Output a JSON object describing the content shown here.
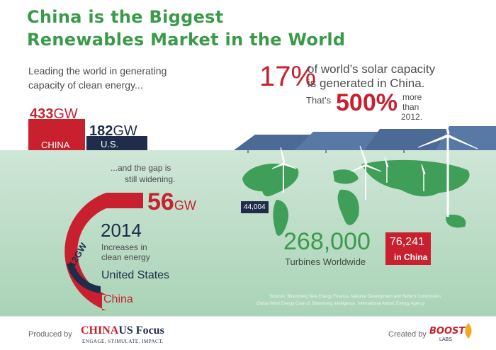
{
  "headline": {
    "line1": "China is the Biggest",
    "line2": "Renewables Market in the World"
  },
  "left_block": {
    "intro_line1": "Leading the world in generating",
    "intro_line2": "capacity of clean energy...",
    "china_value": "433",
    "us_value": "182",
    "unit": "GW",
    "china_label": "CHINA",
    "us_label": "U.S."
  },
  "gap_text": {
    "line1": "...and the gap is",
    "line2": "still widening."
  },
  "increase_2014": {
    "china_value": "56",
    "unit": "GW",
    "year": "2014",
    "caption_line1": "Increases in",
    "caption_line2": "clean energy",
    "us_value": "12GW",
    "us_label": "United States",
    "china_label": "China"
  },
  "solar": {
    "percent": "17%",
    "line1": "of world’s solar capacity",
    "line2": "is generated in China.",
    "thats": "That’s",
    "growth_percent": "500%",
    "more": "more",
    "than": "than",
    "year": "2012."
  },
  "turbines": {
    "us_count": "44,004",
    "total": "268,000",
    "caption": "Turbines Worldwide",
    "china_count": "76,241",
    "china_label": "in China"
  },
  "sources": {
    "line1": "Sources: Bloomberg New Energy Finance, National Development and Reform Commission,",
    "line2": "Global Wind Energy Council, Bloomberg Intelligence, International Atomic Energy Agency"
  },
  "footer": {
    "produced_by": "Produced by",
    "logo_left": "CHINA",
    "logo_right": "US Focus",
    "tagline": "ENGAGE. STIMULATE. IMPACT.",
    "created_by": "Created by",
    "creator_top": "BOOST",
    "creator_bottom": "LABS"
  },
  "colors": {
    "headline_green": "#3a9a4a",
    "china_red": "#c8202f",
    "us_navy": "#1f2d4a",
    "map_green": "#3f9e57"
  }
}
